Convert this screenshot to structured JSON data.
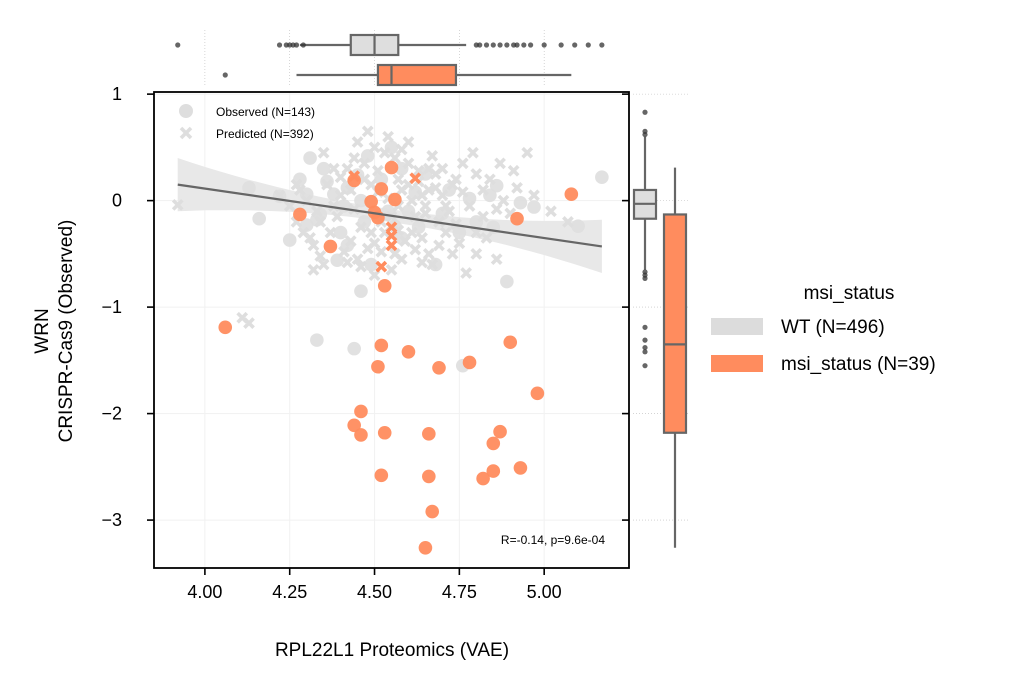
{
  "chart_data": {
    "type": "scatter",
    "xlabel": "RPL22L1 Proteomics (VAE)",
    "ylabel_line1": "WRN",
    "ylabel_line2": "CRISPR-Cas9 (Observed)",
    "xlim": [
      3.85,
      5.25
    ],
    "ylim": [
      -3.45,
      1.02
    ],
    "x_ticks": [
      "4.00",
      "4.25",
      "4.50",
      "4.75",
      "5.00"
    ],
    "x_tick_values": [
      4.0,
      4.25,
      4.5,
      4.75,
      5.0
    ],
    "y_ticks": [
      "1",
      "0",
      "−1",
      "−2",
      "−3"
    ],
    "y_tick_values": [
      1,
      0,
      -1,
      -2,
      -3
    ],
    "grid": true,
    "marker_legend": {
      "placement": "top-left",
      "entries": [
        {
          "label": "Observed (N=143)",
          "marker": "circle"
        },
        {
          "label": "Predicted (N=392)",
          "marker": "x"
        }
      ]
    },
    "annotation": "R=-0.14, p=9.6e-04",
    "group_legend": {
      "title": "msi_status",
      "placement": "right",
      "entries": [
        {
          "label": "WT (N=496)",
          "color": "#dcdcdc"
        },
        {
          "label": "msi_status (N=39)",
          "color": "#ff8c5e"
        }
      ]
    },
    "colors": {
      "wt": "#dedede",
      "msi": "#ff8c5e",
      "box_edge": "#666666",
      "regression": "#666666",
      "band": "#e8e8e8"
    },
    "regression": {
      "x0": 3.92,
      "y0": 0.15,
      "x1": 5.17,
      "y1": -0.43
    },
    "series": [
      {
        "group": "msi",
        "marker": "circle",
        "points": [
          [
            4.06,
            -1.19
          ],
          [
            4.28,
            -0.13
          ],
          [
            4.37,
            -0.43
          ],
          [
            4.44,
            0.19
          ],
          [
            4.52,
            0.11
          ],
          [
            4.55,
            0.31
          ],
          [
            4.56,
            0.01
          ],
          [
            4.49,
            -0.01
          ],
          [
            4.5,
            -0.11
          ],
          [
            4.51,
            -0.16
          ],
          [
            4.53,
            -0.8
          ],
          [
            4.52,
            -1.36
          ],
          [
            4.51,
            -1.56
          ],
          [
            4.6,
            -1.42
          ],
          [
            4.69,
            -1.57
          ],
          [
            4.78,
            -1.52
          ],
          [
            4.9,
            -1.33
          ],
          [
            4.98,
            -1.81
          ],
          [
            4.92,
            -0.17
          ],
          [
            5.08,
            0.06
          ],
          [
            4.46,
            -1.98
          ],
          [
            4.44,
            -2.11
          ],
          [
            4.46,
            -2.2
          ],
          [
            4.53,
            -2.18
          ],
          [
            4.66,
            -2.19
          ],
          [
            4.87,
            -2.17
          ],
          [
            4.85,
            -2.28
          ],
          [
            4.52,
            -2.58
          ],
          [
            4.66,
            -2.59
          ],
          [
            4.82,
            -2.61
          ],
          [
            4.85,
            -2.54
          ],
          [
            4.93,
            -2.51
          ],
          [
            4.67,
            -2.92
          ],
          [
            4.65,
            -3.26
          ]
        ]
      },
      {
        "group": "msi",
        "marker": "x",
        "points": [
          [
            4.44,
            0.23
          ],
          [
            4.62,
            0.21
          ],
          [
            4.55,
            -0.25
          ],
          [
            4.55,
            -0.33
          ],
          [
            4.55,
            -0.42
          ],
          [
            4.52,
            -0.62
          ]
        ]
      },
      {
        "group": "wt",
        "marker": "circle",
        "points": [
          [
            4.13,
            0.12
          ],
          [
            4.16,
            -0.17
          ],
          [
            4.25,
            -0.37
          ],
          [
            4.3,
            0.06
          ],
          [
            4.34,
            -0.13
          ],
          [
            4.31,
            0.4
          ],
          [
            4.35,
            0.3
          ],
          [
            4.39,
            -0.56
          ],
          [
            4.45,
            0.24
          ],
          [
            4.33,
            -1.31
          ],
          [
            4.44,
            -1.39
          ],
          [
            4.46,
            -0.85
          ],
          [
            4.55,
            0.5
          ],
          [
            4.42,
            0.12
          ],
          [
            4.56,
            -0.24
          ],
          [
            4.86,
            0.14
          ],
          [
            4.97,
            -0.06
          ],
          [
            5.17,
            0.22
          ],
          [
            4.89,
            -0.76
          ],
          [
            5.1,
            -0.24
          ],
          [
            4.3,
            -0.23
          ],
          [
            4.41,
            -0.05
          ],
          [
            4.62,
            0.08
          ],
          [
            4.7,
            -0.12
          ],
          [
            4.78,
            0.02
          ],
          [
            4.36,
            0.18
          ],
          [
            4.48,
            0.42
          ],
          [
            4.58,
            -0.35
          ],
          [
            4.8,
            -0.2
          ],
          [
            4.22,
            0.04
          ],
          [
            4.4,
            -0.3
          ],
          [
            4.49,
            -0.6
          ],
          [
            4.65,
            0.25
          ],
          [
            4.93,
            -0.02
          ],
          [
            4.38,
            0.06
          ],
          [
            4.52,
            0.2
          ],
          [
            4.75,
            -0.3
          ],
          [
            4.72,
            0.1
          ],
          [
            4.33,
            -0.18
          ],
          [
            4.6,
            -0.1
          ],
          [
            4.68,
            -0.6
          ],
          [
            4.47,
            -0.2
          ],
          [
            4.54,
            -0.1
          ],
          [
            4.42,
            -0.42
          ],
          [
            4.28,
            0.2
          ],
          [
            4.85,
            -0.25
          ],
          [
            4.76,
            -1.55
          ],
          [
            4.84,
            0.05
          ],
          [
            4.63,
            -0.25
          ],
          [
            4.46,
            0.0
          ],
          [
            4.58,
            0.3
          ]
        ]
      },
      {
        "group": "wt",
        "marker": "x",
        "points": [
          [
            3.92,
            -0.04
          ],
          [
            4.22,
            0.05
          ],
          [
            4.28,
            0.1
          ],
          [
            4.3,
            0.0
          ],
          [
            4.33,
            -0.1
          ],
          [
            4.34,
            -0.2
          ],
          [
            4.36,
            0.15
          ],
          [
            4.38,
            -0.05
          ],
          [
            4.4,
            0.22
          ],
          [
            4.42,
            0.3
          ],
          [
            4.44,
            0.4
          ],
          [
            4.45,
            0.55
          ],
          [
            4.47,
            0.35
          ],
          [
            4.48,
            0.65
          ],
          [
            4.5,
            0.5
          ],
          [
            4.51,
            0.28
          ],
          [
            4.53,
            0.45
          ],
          [
            4.54,
            0.6
          ],
          [
            4.56,
            0.4
          ],
          [
            4.57,
            0.2
          ],
          [
            4.58,
            0.1
          ],
          [
            4.6,
            0.35
          ],
          [
            4.61,
            0.0
          ],
          [
            4.62,
            -0.15
          ],
          [
            4.63,
            0.18
          ],
          [
            4.64,
            0.05
          ],
          [
            4.65,
            -0.05
          ],
          [
            4.66,
            0.3
          ],
          [
            4.67,
            0.42
          ],
          [
            4.68,
            0.12
          ],
          [
            4.69,
            -0.2
          ],
          [
            4.7,
            0.05
          ],
          [
            4.72,
            -0.1
          ],
          [
            4.74,
            0.2
          ],
          [
            4.76,
            0.08
          ],
          [
            4.78,
            -0.05
          ],
          [
            4.8,
            0.25
          ],
          [
            4.82,
            0.1
          ],
          [
            4.84,
            0.2
          ],
          [
            4.86,
            -0.08
          ],
          [
            4.88,
            0.0
          ],
          [
            4.9,
            -0.12
          ],
          [
            4.92,
            0.12
          ],
          [
            4.95,
            0.45
          ],
          [
            5.02,
            -0.1
          ],
          [
            5.07,
            -0.2
          ],
          [
            4.25,
            -0.05
          ],
          [
            4.27,
            -0.2
          ],
          [
            4.29,
            -0.3
          ],
          [
            4.31,
            -0.35
          ],
          [
            4.32,
            -0.42
          ],
          [
            4.34,
            -0.52
          ],
          [
            4.35,
            -0.6
          ],
          [
            4.37,
            -0.3
          ],
          [
            4.39,
            -0.15
          ],
          [
            4.41,
            -0.48
          ],
          [
            4.43,
            -0.38
          ],
          [
            4.45,
            -0.55
          ],
          [
            4.46,
            -0.25
          ],
          [
            4.48,
            -0.45
          ],
          [
            4.49,
            -0.3
          ],
          [
            4.5,
            -0.4
          ],
          [
            4.52,
            -0.48
          ],
          [
            4.53,
            -0.3
          ],
          [
            4.55,
            -0.15
          ],
          [
            4.56,
            -0.5
          ],
          [
            4.58,
            -0.55
          ],
          [
            4.59,
            -0.38
          ],
          [
            4.61,
            -0.3
          ],
          [
            4.62,
            -0.46
          ],
          [
            4.64,
            -0.35
          ],
          [
            4.66,
            -0.5
          ],
          [
            4.67,
            -0.6
          ],
          [
            4.69,
            -0.42
          ],
          [
            4.71,
            -0.3
          ],
          [
            4.73,
            -0.5
          ],
          [
            4.75,
            -0.4
          ],
          [
            4.77,
            -0.68
          ],
          [
            4.8,
            -0.5
          ],
          [
            4.83,
            -0.35
          ],
          [
            4.86,
            -0.55
          ],
          [
            4.11,
            -1.1
          ],
          [
            4.13,
            -1.15
          ],
          [
            4.32,
            -0.65
          ],
          [
            4.4,
            0.05
          ],
          [
            4.43,
            0.1
          ],
          [
            4.47,
            0.2
          ],
          [
            4.51,
            0.08
          ],
          [
            4.54,
            0.02
          ],
          [
            4.57,
            -0.05
          ],
          [
            4.6,
            0.15
          ],
          [
            4.63,
            0.28
          ],
          [
            4.66,
            0.1
          ],
          [
            4.7,
            0.3
          ],
          [
            4.73,
            0.15
          ],
          [
            4.76,
            0.35
          ],
          [
            4.79,
            0.45
          ],
          [
            4.87,
            0.35
          ],
          [
            4.91,
            0.28
          ],
          [
            4.97,
            0.05
          ],
          [
            4.38,
            0.3
          ],
          [
            4.44,
            -0.08
          ],
          [
            4.49,
            0.15
          ],
          [
            4.52,
            -0.2
          ],
          [
            4.57,
            -0.28
          ],
          [
            4.65,
            -0.12
          ],
          [
            4.71,
            -0.05
          ],
          [
            4.74,
            -0.22
          ],
          [
            4.82,
            -0.15
          ],
          [
            4.35,
            0.45
          ],
          [
            4.6,
            0.55
          ],
          [
            4.68,
            0.25
          ],
          [
            4.8,
            -0.3
          ],
          [
            4.55,
            -0.65
          ],
          [
            4.5,
            -0.7
          ],
          [
            4.46,
            -0.62
          ],
          [
            4.42,
            -0.58
          ],
          [
            4.64,
            -0.58
          ],
          [
            4.27,
            0.15
          ],
          [
            4.58,
            0.48
          ]
        ]
      }
    ],
    "top_boxplots": [
      {
        "group": "wt",
        "q1": 4.43,
        "median": 4.5,
        "q3": 4.57,
        "whisker_low": 4.28,
        "whisker_high": 4.77,
        "outliers": [
          3.92,
          4.22,
          4.24,
          4.25,
          4.26,
          4.27,
          4.29,
          4.8,
          4.81,
          4.83,
          4.85,
          4.87,
          4.89,
          4.91,
          4.92,
          4.94,
          4.96,
          5.0,
          5.05,
          5.09,
          5.13,
          5.17
        ]
      },
      {
        "group": "msi",
        "q1": 4.51,
        "median": 4.55,
        "q3": 4.74,
        "whisker_low": 4.27,
        "whisker_high": 5.08,
        "outliers": [
          4.06
        ]
      }
    ],
    "right_boxplots": [
      {
        "group": "wt",
        "q1": -0.17,
        "median": -0.03,
        "q3": 0.1,
        "whisker_low": -0.65,
        "whisker_high": 0.6,
        "outliers": [
          0.83,
          0.65,
          0.62,
          -0.67,
          -0.7,
          -0.73,
          -1.19,
          -1.31,
          -1.38,
          -1.42,
          -1.55
        ]
      },
      {
        "group": "msi",
        "q1": -2.18,
        "median": -1.35,
        "q3": -0.13,
        "whisker_low": -3.26,
        "whisker_high": 0.31,
        "outliers": []
      }
    ]
  }
}
